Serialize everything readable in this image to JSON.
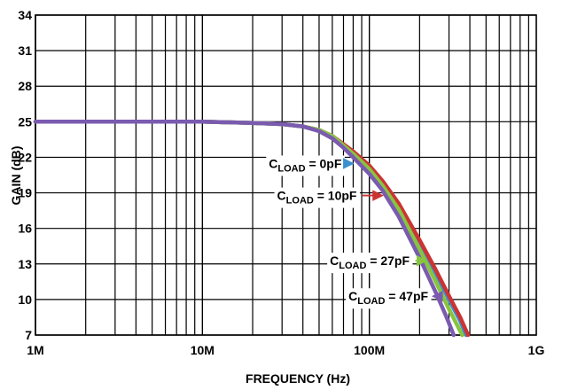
{
  "chart_data": {
    "type": "line",
    "xlabel": "FREQUENCY (Hz)",
    "ylabel": "GAIN (dB)",
    "x_scale": "log",
    "xlim": [
      1000000,
      1000000000
    ],
    "ylim": [
      7,
      34
    ],
    "grid": true,
    "x_ticks": [
      {
        "value": 1000000,
        "label": "1M"
      },
      {
        "value": 10000000,
        "label": "10M"
      },
      {
        "value": 100000000,
        "label": "100M"
      },
      {
        "value": 1000000000,
        "label": "1G"
      }
    ],
    "y_ticks": [
      {
        "value": 7,
        "label": "7"
      },
      {
        "value": 10,
        "label": "10"
      },
      {
        "value": 13,
        "label": "13"
      },
      {
        "value": 16,
        "label": "16"
      },
      {
        "value": 19,
        "label": "19"
      },
      {
        "value": 22,
        "label": "22"
      },
      {
        "value": 25,
        "label": "25"
      },
      {
        "value": 28,
        "label": "28"
      },
      {
        "value": 31,
        "label": "31"
      },
      {
        "value": 34,
        "label": "34"
      }
    ],
    "series": [
      {
        "name": "CLOAD = 0pF",
        "name_main": "C",
        "name_sub": "LOAD",
        "name_rest": " = 0pF",
        "color": "#3a8fd0",
        "arrow_at": [
          80000000,
          20.8
        ],
        "x": [
          1000000,
          5000000,
          10000000,
          20000000,
          30000000,
          40000000,
          50000000,
          60000000,
          70000000,
          80000000,
          100000000,
          120000000,
          150000000,
          200000000,
          250000000,
          300000000,
          350000000,
          380000000
        ],
        "y": [
          25.0,
          25.0,
          25.0,
          24.9,
          24.8,
          24.6,
          24.3,
          23.8,
          23.0,
          22.4,
          21.2,
          19.9,
          18.0,
          14.8,
          12.2,
          10.0,
          8.2,
          7.0
        ]
      },
      {
        "name": "CLOAD = 10pF",
        "name_main": "C",
        "name_sub": "LOAD",
        "name_rest": " = 10pF",
        "color": "#cc3333",
        "arrow_at": [
          120000000,
          18.0
        ],
        "x": [
          1000000,
          5000000,
          10000000,
          20000000,
          30000000,
          40000000,
          50000000,
          60000000,
          70000000,
          80000000,
          100000000,
          120000000,
          150000000,
          200000000,
          250000000,
          300000000,
          350000000,
          390000000
        ],
        "y": [
          25.0,
          25.0,
          25.0,
          24.9,
          24.8,
          24.6,
          24.3,
          23.8,
          23.1,
          22.5,
          21.3,
          20.0,
          18.1,
          15.0,
          12.5,
          10.3,
          8.5,
          7.0
        ]
      },
      {
        "name": "CLOAD = 27pF",
        "name_main": "C",
        "name_sub": "LOAD",
        "name_rest": " = 27pF",
        "color": "#88c440",
        "arrow_at": [
          220000000,
          12.6
        ],
        "x": [
          1000000,
          5000000,
          10000000,
          20000000,
          30000000,
          40000000,
          50000000,
          60000000,
          70000000,
          80000000,
          100000000,
          120000000,
          150000000,
          200000000,
          250000000,
          300000000,
          360000000
        ],
        "y": [
          25.0,
          25.0,
          25.0,
          24.9,
          24.8,
          24.6,
          24.3,
          23.8,
          23.0,
          22.3,
          21.0,
          19.6,
          17.6,
          14.2,
          11.5,
          9.2,
          7.0
        ]
      },
      {
        "name": "CLOAD = 47pF",
        "name_main": "C",
        "name_sub": "LOAD",
        "name_rest": " = 47pF",
        "color": "#7a5bb0",
        "arrow_at": [
          240000000,
          9.6
        ],
        "x": [
          1000000,
          5000000,
          10000000,
          20000000,
          30000000,
          40000000,
          50000000,
          60000000,
          70000000,
          80000000,
          100000000,
          120000000,
          150000000,
          200000000,
          250000000,
          290000000,
          320000000
        ],
        "y": [
          25.0,
          25.0,
          25.0,
          24.9,
          24.8,
          24.6,
          24.2,
          23.6,
          22.8,
          22.0,
          20.6,
          19.2,
          17.0,
          13.5,
          10.6,
          8.5,
          7.0
        ]
      }
    ],
    "annotations": [
      {
        "series": 0,
        "label_at": [
          25000000,
          21.1
        ]
      },
      {
        "series": 1,
        "label_at": [
          28000000,
          18.4
        ]
      },
      {
        "series": 2,
        "label_at": [
          58000000,
          12.9
        ]
      },
      {
        "series": 3,
        "label_at": [
          75000000,
          9.9
        ]
      }
    ]
  }
}
